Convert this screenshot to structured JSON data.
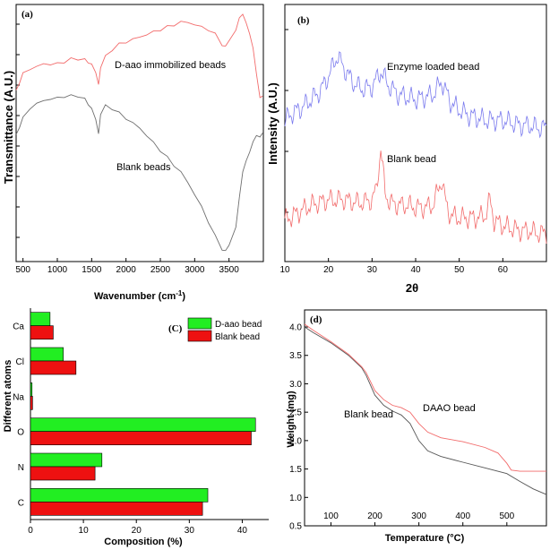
{
  "chart_data": [
    {
      "type": "line",
      "panel_label": "(a)",
      "xlabel": "Wavenumber (cm",
      "xlabel_sup": "-1",
      "xlabel_end": ")",
      "ylabel": "Transmittance (A.U.)",
      "xlim": [
        400,
        4000
      ],
      "x_ticks": [
        "500",
        "1000",
        "1500",
        "2000",
        "2500",
        "3000",
        "3500"
      ],
      "series": [
        {
          "name": "D-aao immobilized beads",
          "color": "#f26b6b",
          "points": [
            [
              400,
              0.68
            ],
            [
              450,
              0.7
            ],
            [
              500,
              0.74
            ],
            [
              600,
              0.76
            ],
            [
              700,
              0.77
            ],
            [
              800,
              0.78
            ],
            [
              900,
              0.78
            ],
            [
              1000,
              0.78
            ],
            [
              1100,
              0.79
            ],
            [
              1200,
              0.8
            ],
            [
              1300,
              0.8
            ],
            [
              1400,
              0.8
            ],
            [
              1450,
              0.79
            ],
            [
              1500,
              0.78
            ],
            [
              1560,
              0.74
            ],
            [
              1600,
              0.7
            ],
            [
              1630,
              0.76
            ],
            [
              1700,
              0.81
            ],
            [
              1800,
              0.84
            ],
            [
              1900,
              0.86
            ],
            [
              2000,
              0.87
            ],
            [
              2100,
              0.88
            ],
            [
              2200,
              0.89
            ],
            [
              2300,
              0.9
            ],
            [
              2400,
              0.91
            ],
            [
              2500,
              0.92
            ],
            [
              2600,
              0.93
            ],
            [
              2700,
              0.94
            ],
            [
              2800,
              0.95
            ],
            [
              2900,
              0.95
            ],
            [
              3000,
              0.94
            ],
            [
              3100,
              0.93
            ],
            [
              3200,
              0.92
            ],
            [
              3300,
              0.9
            ],
            [
              3400,
              0.86
            ],
            [
              3450,
              0.85
            ],
            [
              3500,
              0.87
            ],
            [
              3600,
              0.92
            ],
            [
              3650,
              0.95
            ],
            [
              3700,
              0.97
            ],
            [
              3750,
              0.96
            ],
            [
              3800,
              0.92
            ],
            [
              3850,
              0.84
            ],
            [
              3900,
              0.72
            ],
            [
              3950,
              0.64
            ],
            [
              3990,
              0.63
            ]
          ]
        },
        {
          "name": "Blank beads",
          "color": "#6f6f6f",
          "points": [
            [
              400,
              0.5
            ],
            [
              450,
              0.52
            ],
            [
              500,
              0.56
            ],
            [
              600,
              0.6
            ],
            [
              700,
              0.62
            ],
            [
              800,
              0.63
            ],
            [
              900,
              0.64
            ],
            [
              1000,
              0.64
            ],
            [
              1100,
              0.65
            ],
            [
              1200,
              0.65
            ],
            [
              1300,
              0.65
            ],
            [
              1400,
              0.64
            ],
            [
              1450,
              0.62
            ],
            [
              1500,
              0.6
            ],
            [
              1560,
              0.55
            ],
            [
              1600,
              0.5
            ],
            [
              1630,
              0.57
            ],
            [
              1700,
              0.61
            ],
            [
              1800,
              0.6
            ],
            [
              1900,
              0.58
            ],
            [
              2000,
              0.56
            ],
            [
              2100,
              0.54
            ],
            [
              2200,
              0.52
            ],
            [
              2300,
              0.49
            ],
            [
              2400,
              0.46
            ],
            [
              2500,
              0.43
            ],
            [
              2600,
              0.4
            ],
            [
              2700,
              0.37
            ],
            [
              2800,
              0.34
            ],
            [
              2900,
              0.3
            ],
            [
              3000,
              0.25
            ],
            [
              3100,
              0.2
            ],
            [
              3200,
              0.14
            ],
            [
              3300,
              0.08
            ],
            [
              3400,
              0.03
            ],
            [
              3450,
              0.02
            ],
            [
              3500,
              0.04
            ],
            [
              3600,
              0.12
            ],
            [
              3650,
              0.22
            ],
            [
              3700,
              0.33
            ],
            [
              3750,
              0.4
            ],
            [
              3800,
              0.44
            ],
            [
              3850,
              0.46
            ],
            [
              3900,
              0.47
            ],
            [
              3950,
              0.48
            ],
            [
              3990,
              0.48
            ]
          ]
        }
      ],
      "annotations": [
        "D-aao immobilized beads",
        "Blank beads"
      ]
    },
    {
      "type": "line",
      "panel_label": "(b)",
      "xlabel": "2θ",
      "ylabel": "Intensity (A.U.)",
      "xlim": [
        10,
        70
      ],
      "x_ticks": [
        "10",
        "20",
        "30",
        "40",
        "50",
        "60"
      ],
      "series": [
        {
          "name": "Enzyme loaded bead",
          "color": "#7a7aee",
          "points": [
            [
              10,
              0.55
            ],
            [
              12,
              0.58
            ],
            [
              14,
              0.6
            ],
            [
              16,
              0.63
            ],
            [
              18,
              0.66
            ],
            [
              20,
              0.72
            ],
            [
              22,
              0.8
            ],
            [
              24,
              0.74
            ],
            [
              26,
              0.69
            ],
            [
              28,
              0.67
            ],
            [
              30,
              0.68
            ],
            [
              32,
              0.74
            ],
            [
              34,
              0.68
            ],
            [
              36,
              0.65
            ],
            [
              38,
              0.64
            ],
            [
              40,
              0.63
            ],
            [
              42,
              0.64
            ],
            [
              44,
              0.65
            ],
            [
              46,
              0.7
            ],
            [
              48,
              0.62
            ],
            [
              50,
              0.59
            ],
            [
              52,
              0.57
            ],
            [
              54,
              0.56
            ],
            [
              56,
              0.55
            ],
            [
              58,
              0.55
            ],
            [
              60,
              0.55
            ],
            [
              62,
              0.54
            ],
            [
              64,
              0.53
            ],
            [
              66,
              0.53
            ],
            [
              68,
              0.52
            ],
            [
              70,
              0.52
            ]
          ]
        },
        {
          "name": "Blank bead",
          "color": "#f26b6b",
          "points": [
            [
              10,
              0.16
            ],
            [
              12,
              0.18
            ],
            [
              14,
              0.2
            ],
            [
              16,
              0.22
            ],
            [
              18,
              0.23
            ],
            [
              20,
              0.24
            ],
            [
              22,
              0.24
            ],
            [
              24,
              0.24
            ],
            [
              26,
              0.23
            ],
            [
              28,
              0.23
            ],
            [
              30,
              0.24
            ],
            [
              31,
              0.28
            ],
            [
              32,
              0.44
            ],
            [
              33,
              0.27
            ],
            [
              34,
              0.23
            ],
            [
              36,
              0.22
            ],
            [
              38,
              0.22
            ],
            [
              40,
              0.21
            ],
            [
              42,
              0.21
            ],
            [
              44,
              0.22
            ],
            [
              46,
              0.32
            ],
            [
              47,
              0.22
            ],
            [
              48,
              0.18
            ],
            [
              50,
              0.17
            ],
            [
              52,
              0.17
            ],
            [
              54,
              0.17
            ],
            [
              56,
              0.18
            ],
            [
              57,
              0.24
            ],
            [
              58,
              0.16
            ],
            [
              60,
              0.14
            ],
            [
              62,
              0.13
            ],
            [
              64,
              0.12
            ],
            [
              66,
              0.12
            ],
            [
              68,
              0.11
            ],
            [
              70,
              0.11
            ]
          ]
        }
      ],
      "annotations": [
        "Enzyme loaded bead",
        "Blank bead"
      ]
    },
    {
      "type": "bar",
      "orientation": "horizontal",
      "panel_label": "(C)",
      "xlabel": "Composition (%)",
      "ylabel": "Different atoms",
      "xlim": [
        0,
        45
      ],
      "x_ticks": [
        "0",
        "10",
        "20",
        "30",
        "40"
      ],
      "categories": [
        "Ca",
        "Cl",
        "Na",
        "O",
        "N",
        "C"
      ],
      "series": [
        {
          "name": "D-aao bead",
          "color": "#22ee22",
          "values": [
            3.7,
            6.2,
            0.3,
            42.5,
            13.5,
            33.5
          ]
        },
        {
          "name": "Blank bead",
          "color": "#ee1111",
          "values": [
            4.3,
            8.6,
            0.4,
            41.7,
            12.2,
            32.5
          ]
        }
      ],
      "legend": "top-right"
    },
    {
      "type": "line",
      "panel_label": "(d)",
      "xlabel": "Temperature (°C)",
      "ylabel": "Weight (mg)",
      "xlim": [
        40,
        590
      ],
      "ylim": [
        0.5,
        4.3
      ],
      "x_ticks": [
        "100",
        "200",
        "300",
        "400",
        "500"
      ],
      "y_ticks": [
        "0.5",
        "1.0",
        "1.5",
        "2.0",
        "2.5",
        "3.0",
        "3.5",
        "4.0"
      ],
      "series": [
        {
          "name": "Blank bead",
          "color": "#555555",
          "points": [
            [
              40,
              4.0
            ],
            [
              60,
              3.9
            ],
            [
              100,
              3.72
            ],
            [
              140,
              3.5
            ],
            [
              170,
              3.28
            ],
            [
              180,
              3.15
            ],
            [
              200,
              2.8
            ],
            [
              220,
              2.62
            ],
            [
              240,
              2.52
            ],
            [
              260,
              2.45
            ],
            [
              280,
              2.3
            ],
            [
              300,
              2.0
            ],
            [
              320,
              1.82
            ],
            [
              350,
              1.72
            ],
            [
              400,
              1.62
            ],
            [
              450,
              1.52
            ],
            [
              500,
              1.42
            ],
            [
              530,
              1.28
            ],
            [
              560,
              1.15
            ],
            [
              590,
              1.05
            ]
          ]
        },
        {
          "name": "DAAO bead",
          "color": "#f26b6b",
          "points": [
            [
              40,
              4.05
            ],
            [
              60,
              3.94
            ],
            [
              100,
              3.74
            ],
            [
              140,
              3.52
            ],
            [
              170,
              3.3
            ],
            [
              180,
              3.2
            ],
            [
              200,
              2.88
            ],
            [
              220,
              2.72
            ],
            [
              240,
              2.62
            ],
            [
              260,
              2.58
            ],
            [
              280,
              2.5
            ],
            [
              300,
              2.3
            ],
            [
              320,
              2.15
            ],
            [
              350,
              2.05
            ],
            [
              400,
              1.98
            ],
            [
              450,
              1.88
            ],
            [
              480,
              1.78
            ],
            [
              500,
              1.6
            ],
            [
              510,
              1.48
            ],
            [
              530,
              1.46
            ],
            [
              560,
              1.46
            ],
            [
              590,
              1.46
            ]
          ]
        }
      ],
      "annotations": [
        "Blank bead",
        "DAAO bead"
      ]
    }
  ]
}
